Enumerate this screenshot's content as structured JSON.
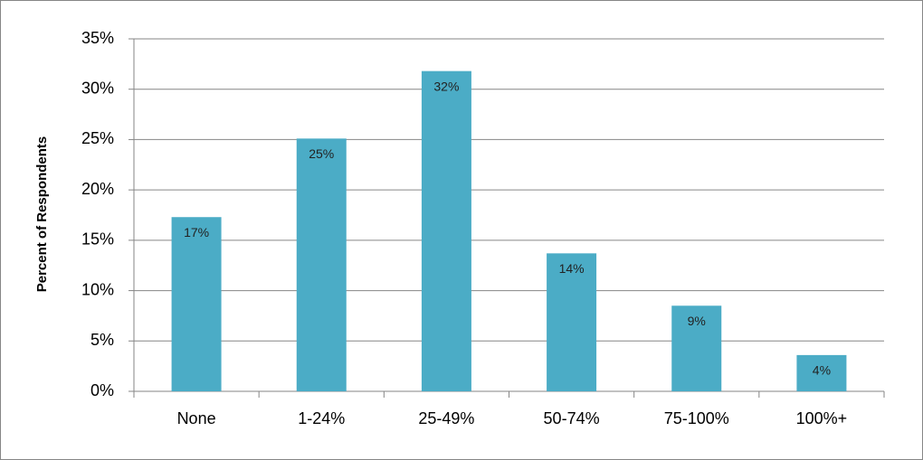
{
  "chart_data": {
    "type": "bar",
    "y_axis_label": "Percent of Respondents",
    "categories": [
      "None",
      "1-24%",
      "25-49%",
      "50-74%",
      "75-100%",
      "100%+"
    ],
    "values": [
      17.3,
      25.1,
      31.8,
      13.7,
      8.5,
      3.6
    ],
    "value_labels": [
      "17%",
      "25%",
      "32%",
      "14%",
      "9%",
      "4%"
    ],
    "color": "#4bacc6",
    "ylim": [
      0,
      35
    ],
    "yticks": [
      {
        "value": 0,
        "label": "0%"
      },
      {
        "value": 5,
        "label": "5%"
      },
      {
        "value": 10,
        "label": "10%"
      },
      {
        "value": 15,
        "label": "15%"
      },
      {
        "value": 20,
        "label": "20%"
      },
      {
        "value": 25,
        "label": "25%"
      },
      {
        "value": 30,
        "label": "30%"
      },
      {
        "value": 35,
        "label": "35%"
      }
    ],
    "grid": true
  }
}
